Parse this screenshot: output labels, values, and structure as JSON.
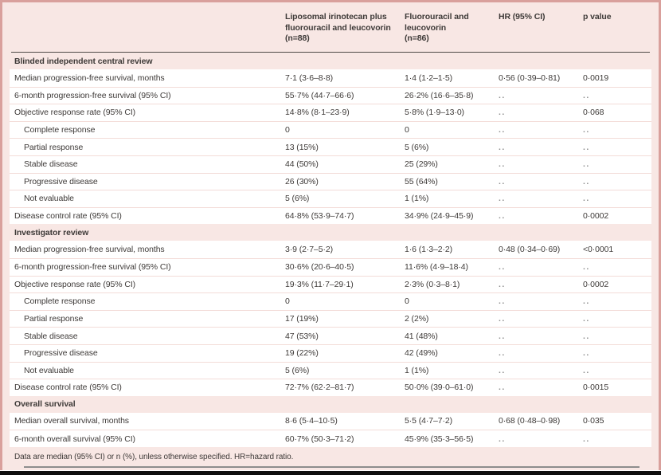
{
  "colors": {
    "card_bg": "#f8e7e4",
    "card_border": "#d9a09c",
    "row_bg": "#ffffff",
    "row_divider": "#f3dcd8",
    "header_rule": "#4e4a48",
    "bottom_rule": "#8d8d8d",
    "text": "#3e3a38",
    "muted_dots": "#8f8f8f",
    "bottom_band": "#0d0d0d"
  },
  "table": {
    "column_headers": {
      "arm1": "Liposomal irinotecan plus\nfluorouracil and leucovorin\n(n=88)",
      "arm2": "Fluorouracil and\nleucovorin\n(n=86)",
      "hr": "HR (95% CI)",
      "p": "p value"
    },
    "missing_marker": "..",
    "sections": [
      {
        "title": "Blinded independent central review",
        "rows": [
          {
            "label": "Median progression-free survival, months",
            "indent": false,
            "arm1": "7·1 (3·6–8·8)",
            "arm2": "1·4 (1·2–1·5)",
            "hr": "0·56 (0·39–0·81)",
            "p": "0·0019"
          },
          {
            "label": "6-month progression-free survival (95% CI)",
            "indent": false,
            "arm1": "55·7% (44·7–66·6)",
            "arm2": "26·2% (16·6–35·8)",
            "hr": "..",
            "p": ".."
          },
          {
            "label": "Objective response rate (95% CI)",
            "indent": false,
            "arm1": "14·8% (8·1–23·9)",
            "arm2": "5·8% (1·9–13·0)",
            "hr": "..",
            "p": "0·068"
          },
          {
            "label": "Complete response",
            "indent": true,
            "arm1": "0",
            "arm2": "0",
            "hr": "..",
            "p": ".."
          },
          {
            "label": "Partial response",
            "indent": true,
            "arm1": "13 (15%)",
            "arm2": "5 (6%)",
            "hr": "..",
            "p": ".."
          },
          {
            "label": "Stable disease",
            "indent": true,
            "arm1": "44 (50%)",
            "arm2": "25 (29%)",
            "hr": "..",
            "p": ".."
          },
          {
            "label": "Progressive disease",
            "indent": true,
            "arm1": "26 (30%)",
            "arm2": "55 (64%)",
            "hr": "..",
            "p": ".."
          },
          {
            "label": "Not evaluable",
            "indent": true,
            "arm1": "5 (6%)",
            "arm2": "1 (1%)",
            "hr": "..",
            "p": ".."
          },
          {
            "label": "Disease control rate (95% CI)",
            "indent": false,
            "arm1": "64·8% (53·9–74·7)",
            "arm2": "34·9% (24·9–45·9)",
            "hr": "..",
            "p": "0·0002"
          }
        ]
      },
      {
        "title": "Investigator review",
        "rows": [
          {
            "label": "Median progression-free survival, months",
            "indent": false,
            "arm1": "3·9 (2·7–5·2)",
            "arm2": "1·6 (1·3–2·2)",
            "hr": "0·48 (0·34–0·69)",
            "p": "<0·0001"
          },
          {
            "label": "6-month progression-free survival (95% CI)",
            "indent": false,
            "arm1": "30·6% (20·6–40·5)",
            "arm2": "11·6% (4·9–18·4)",
            "hr": "..",
            "p": ".."
          },
          {
            "label": "Objective response rate (95% CI)",
            "indent": false,
            "arm1": "19·3% (11·7–29·1)",
            "arm2": "2·3% (0·3–8·1)",
            "hr": "..",
            "p": "0·0002"
          },
          {
            "label": "Complete response",
            "indent": true,
            "arm1": "0",
            "arm2": "0",
            "hr": "..",
            "p": ".."
          },
          {
            "label": "Partial response",
            "indent": true,
            "arm1": "17 (19%)",
            "arm2": "2 (2%)",
            "hr": "..",
            "p": ".."
          },
          {
            "label": "Stable disease",
            "indent": true,
            "arm1": "47 (53%)",
            "arm2": "41 (48%)",
            "hr": "..",
            "p": ".."
          },
          {
            "label": "Progressive disease",
            "indent": true,
            "arm1": "19 (22%)",
            "arm2": "42 (49%)",
            "hr": "..",
            "p": ".."
          },
          {
            "label": "Not evaluable",
            "indent": true,
            "arm1": "5 (6%)",
            "arm2": "1 (1%)",
            "hr": "..",
            "p": ".."
          },
          {
            "label": "Disease control rate (95% CI)",
            "indent": false,
            "arm1": "72·7% (62·2–81·7)",
            "arm2": "50·0% (39·0–61·0)",
            "hr": "..",
            "p": "0·0015"
          }
        ]
      },
      {
        "title": "Overall survival",
        "rows": [
          {
            "label": "Median overall survival, months",
            "indent": false,
            "arm1": "8·6 (5·4–10·5)",
            "arm2": "5·5 (4·7–7·2)",
            "hr": "0·68 (0·48–0·98)",
            "p": "0·035"
          },
          {
            "label": "6-month overall survival (95% CI)",
            "indent": false,
            "arm1": "60·7% (50·3–71·2)",
            "arm2": "45·9% (35·3–56·5)",
            "hr": "..",
            "p": ".."
          }
        ]
      }
    ],
    "footnote": "Data are median (95% CI) or n (%), unless otherwise specified. HR=hazard ratio."
  }
}
